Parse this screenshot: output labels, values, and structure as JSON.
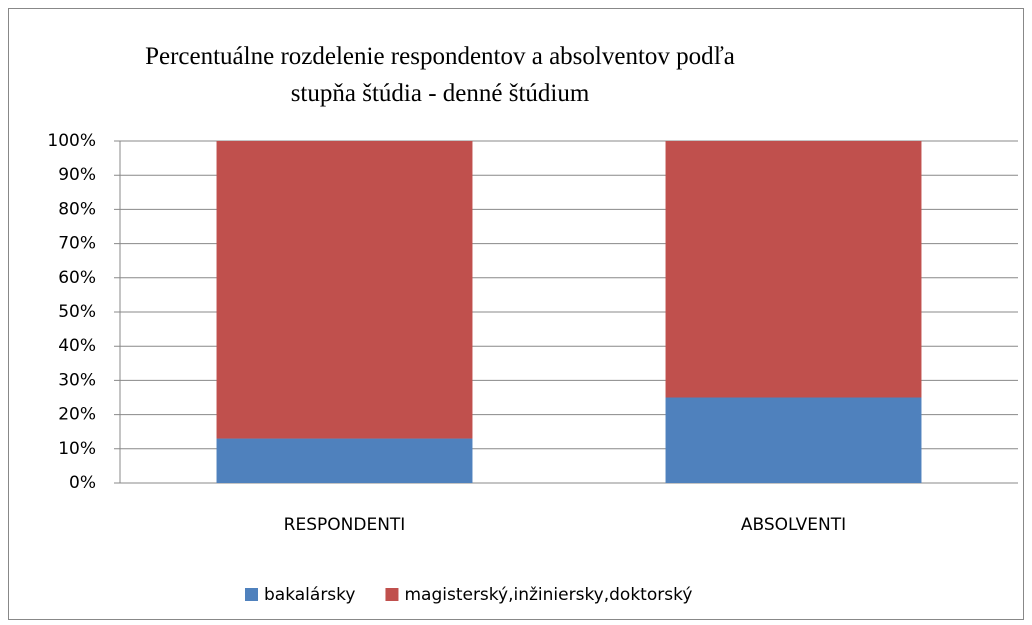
{
  "chart_data": {
    "type": "stacked_bar",
    "title": "Percentuálne rozdelenie respondentov a absolventov podľa stupňa štúdia - denné štúdium",
    "categories": [
      "RESPONDENTI",
      "ABSOLVENTI"
    ],
    "series": [
      {
        "name": "bakalársky",
        "color": "#4f81bd",
        "values": [
          13,
          25
        ]
      },
      {
        "name": "magisterský,inžiniersky,doktorský",
        "color": "#c0504d",
        "values": [
          87,
          75
        ]
      }
    ],
    "ylim": [
      0,
      100
    ],
    "yticks": [
      {
        "value": 0,
        "label": "0%"
      },
      {
        "value": 10,
        "label": "10%"
      },
      {
        "value": 20,
        "label": "20%"
      },
      {
        "value": 30,
        "label": "30%"
      },
      {
        "value": 40,
        "label": "40%"
      },
      {
        "value": 50,
        "label": "50%"
      },
      {
        "value": 60,
        "label": "60%"
      },
      {
        "value": 70,
        "label": "70%"
      },
      {
        "value": 80,
        "label": "80%"
      },
      {
        "value": 90,
        "label": "90%"
      },
      {
        "value": 100,
        "label": "100%"
      }
    ],
    "grid": true,
    "legend": "bottom"
  }
}
